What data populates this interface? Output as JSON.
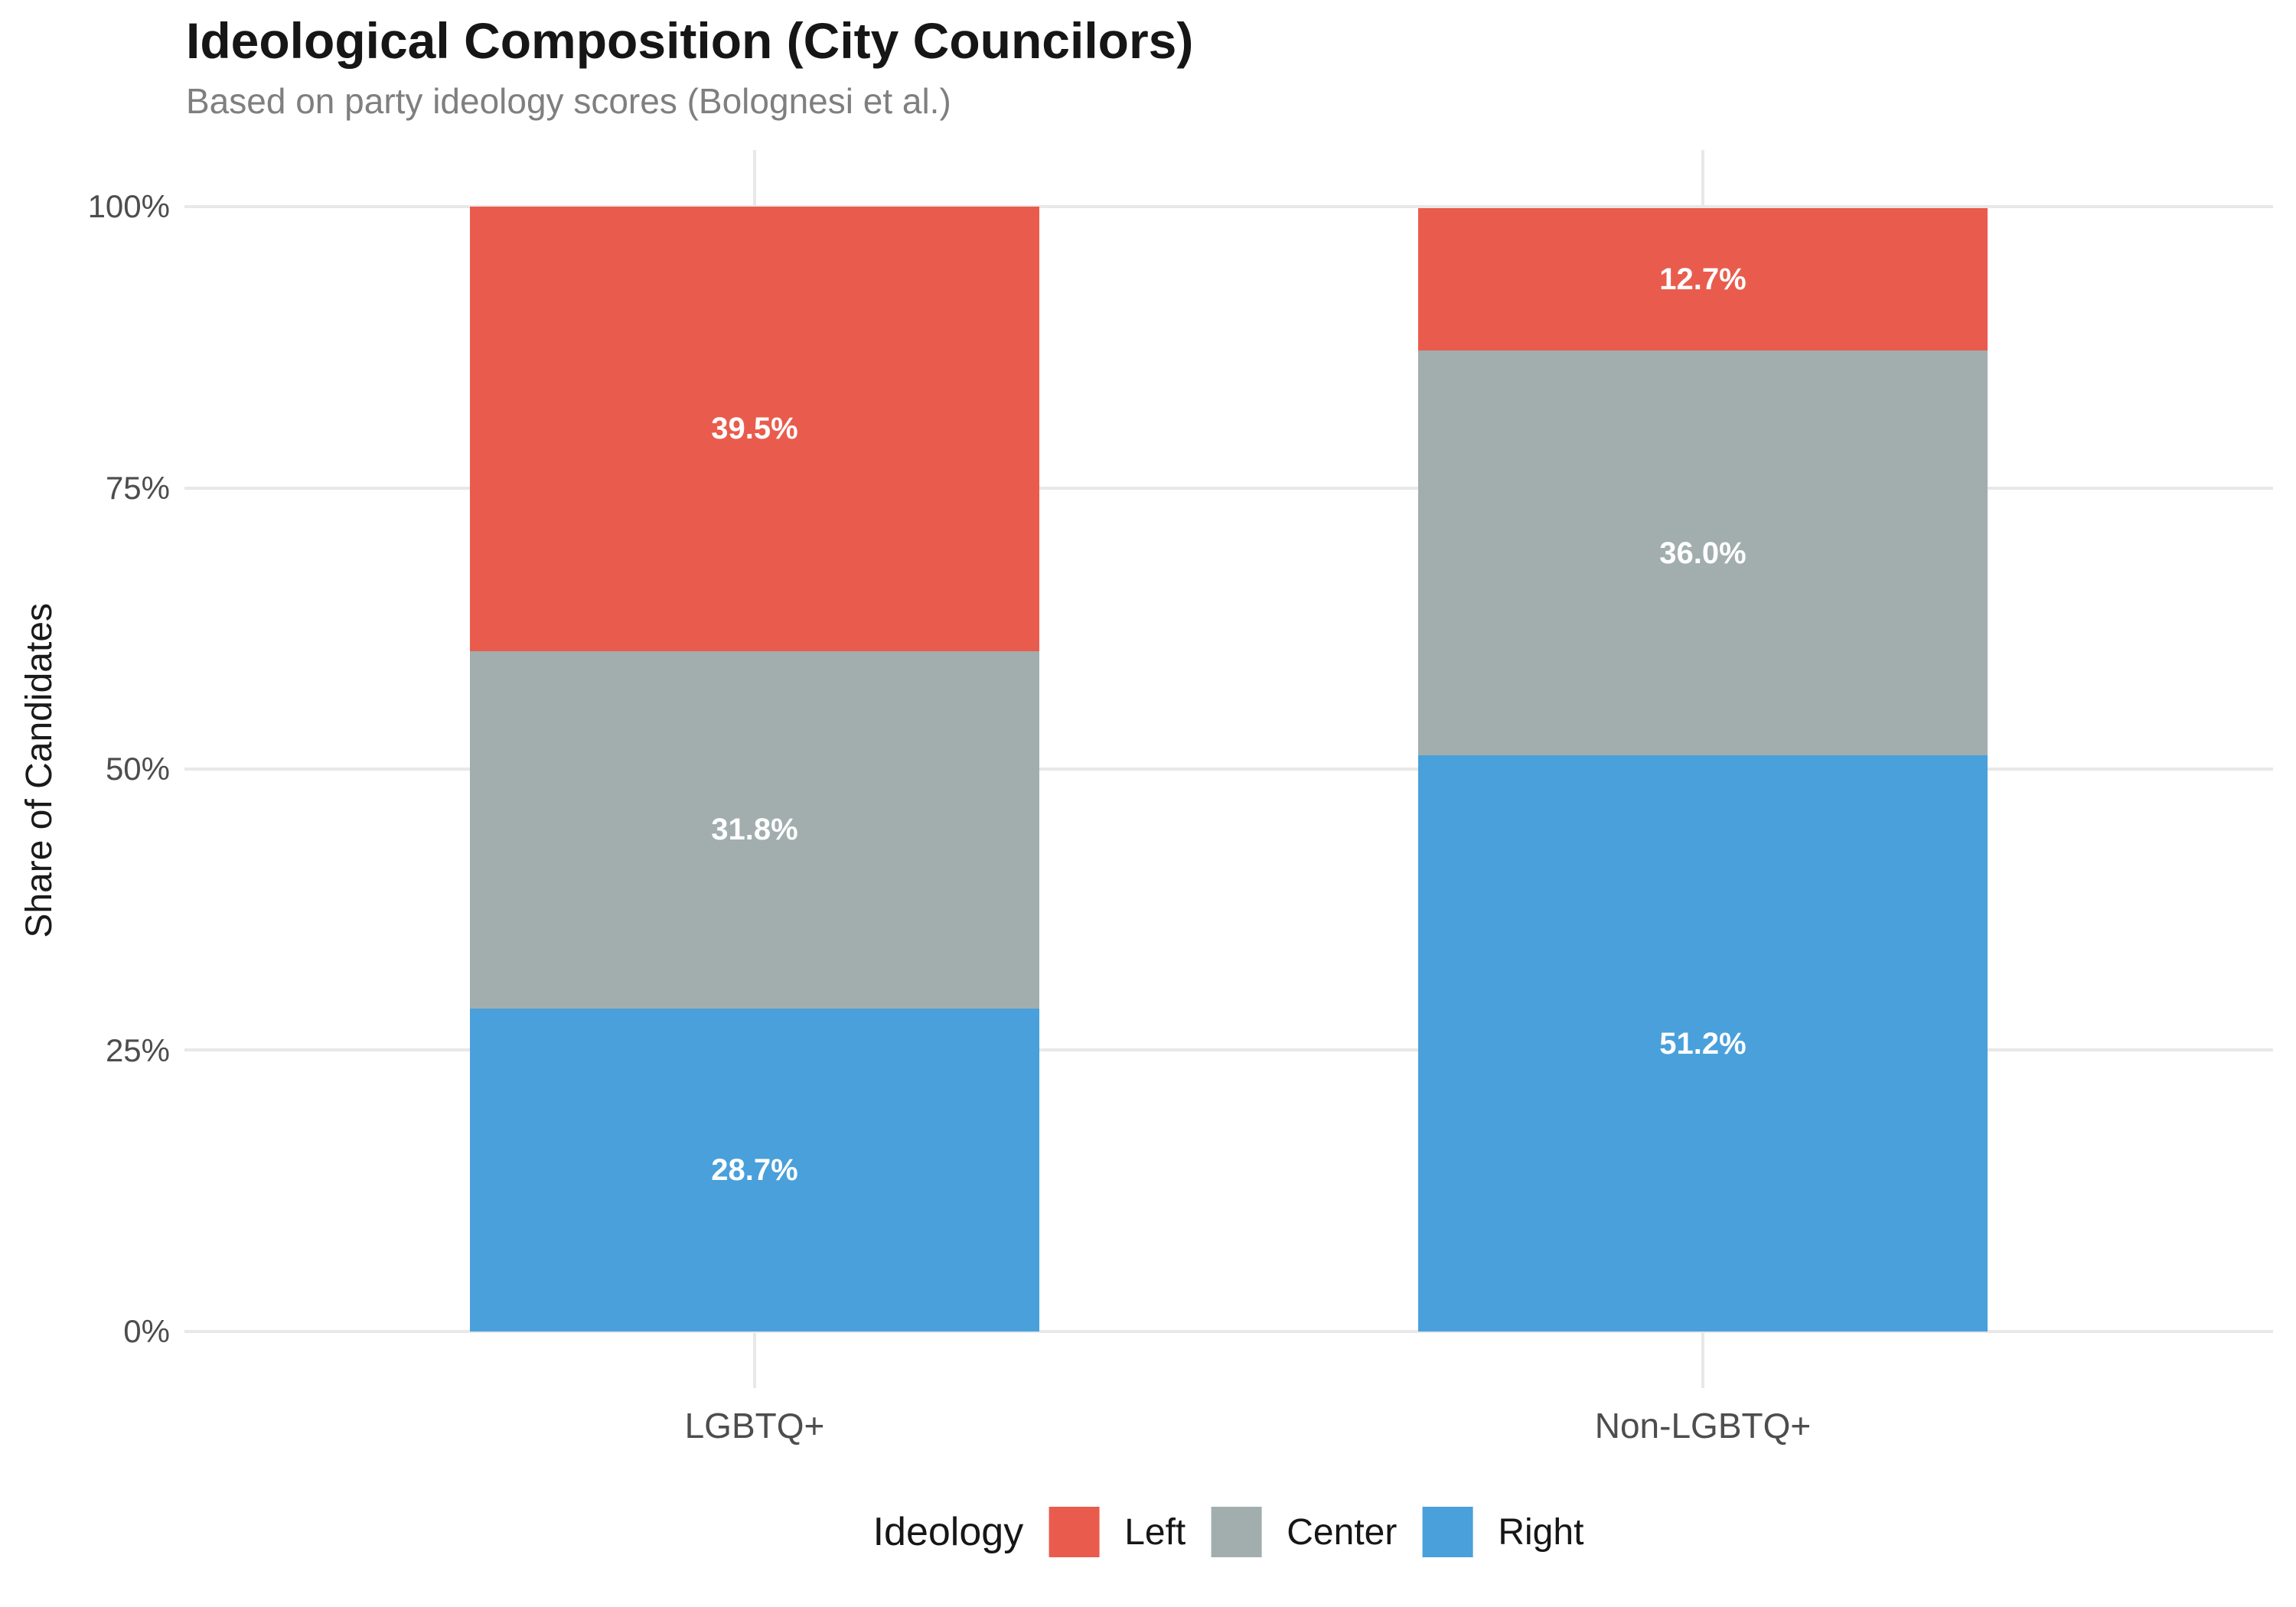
{
  "header": {
    "title": "Ideological Composition (City Councilors)",
    "subtitle": "Based on party ideology scores (Bolognesi et al.)"
  },
  "y_axis": {
    "title": "Share of Candidates",
    "ticks": [
      "100%",
      "75%",
      "50%",
      "25%",
      "0%"
    ]
  },
  "x_axis": {
    "categories": [
      "LGBTQ+",
      "Non-LGBTQ+"
    ]
  },
  "legend": {
    "title": "Ideology",
    "items": [
      {
        "label": "Left",
        "color": "#E95C4D"
      },
      {
        "label": "Center",
        "color": "#A1AEAD"
      },
      {
        "label": "Right",
        "color": "#49A0DB"
      }
    ]
  },
  "chart_data": {
    "type": "bar",
    "variant": "stacked-percent",
    "title": "Ideological Composition (City Councilors)",
    "subtitle": "Based on party ideology scores (Bolognesi et al.)",
    "xlabel": "",
    "ylabel": "Share of Candidates",
    "ylim": [
      0,
      100
    ],
    "y_tick_labels": [
      "0%",
      "25%",
      "50%",
      "75%",
      "100%"
    ],
    "grid": true,
    "legend_position": "bottom",
    "legend_title": "Ideology",
    "categories": [
      "LGBTQ+",
      "Non-LGBTQ+"
    ],
    "series": [
      {
        "name": "Left",
        "color": "#E95C4D",
        "values": [
          39.5,
          12.7
        ],
        "labels": [
          "39.5%",
          "12.7%"
        ]
      },
      {
        "name": "Center",
        "color": "#A1AEAD",
        "values": [
          31.8,
          36.0
        ],
        "labels": [
          "31.8%",
          "36.0%"
        ]
      },
      {
        "name": "Right",
        "color": "#49A0DB",
        "values": [
          28.7,
          51.2
        ],
        "labels": [
          "28.7%",
          "51.2%"
        ]
      }
    ]
  }
}
